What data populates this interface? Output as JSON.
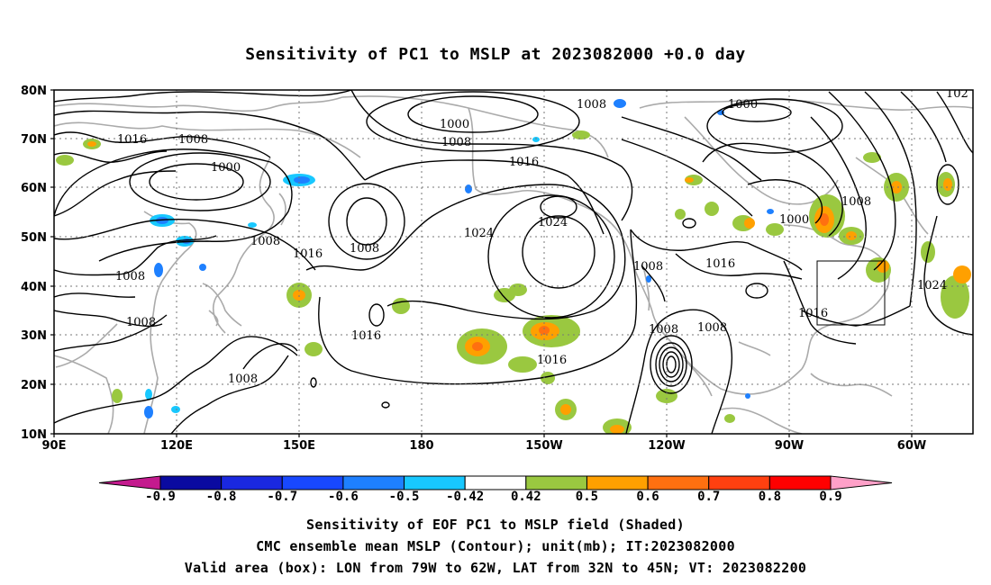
{
  "title": "Sensitivity of PC1 to MSLP at 2023082000 +0.0 day",
  "lat_labels": [
    "80N",
    "70N",
    "60N",
    "50N",
    "40N",
    "30N",
    "20N",
    "10N"
  ],
  "lon_labels": [
    "90E",
    "120E",
    "150E",
    "180",
    "150W",
    "120W",
    "90W",
    "60W"
  ],
  "contour_labels": {
    "l1008_top": "1008",
    "l1000_n": "1000",
    "l1008_n": "1008",
    "l1016_nw": "1016",
    "l1008_nw": "1008",
    "l1000_w": "1000",
    "l1016_mid": "1016",
    "l1000_ne": "1000",
    "l102_ne": "102",
    "l1024_c": "1024",
    "l1024_l": "1024",
    "l1008_e": "1008",
    "l1016_e": "1016",
    "l1008_ne2": "1008",
    "l1000_ne2": "1000",
    "l1008_w2": "1008",
    "l1016_w2": "1016",
    "l1008_c2": "1008",
    "l1008_sw": "1008",
    "l1008_sw2": "1008",
    "l1016_s": "1016",
    "l1016_s2": "1016",
    "l1008_se": "1008",
    "l1008_se2": "1008",
    "l1016_box": "1016",
    "l1024_r": "1024",
    "l1008_w3": "1008"
  },
  "colorbar": {
    "colors": [
      "#c41a8e",
      "#0a0aa0",
      "#1a28e0",
      "#1848ff",
      "#1e80ff",
      "#18c8ff",
      "#ffffff",
      "#9ac840",
      "#ffa000",
      "#ff7010",
      "#ff4010",
      "#ff0000",
      "#ffa0c8"
    ],
    "labels": [
      "-0.9",
      "-0.8",
      "-0.7",
      "-0.6",
      "-0.5",
      "-0.42",
      "0.42",
      "0.5",
      "0.6",
      "0.7",
      "0.8",
      "0.9"
    ]
  },
  "box": {
    "lon_west": "79W",
    "lon_east": "62W",
    "lat_south": "32N",
    "lat_north": "45N"
  },
  "captions": {
    "line1": "Sensitivity of EOF PC1 to MSLP field (Shaded)",
    "line2": "CMC ensemble mean MSLP (Contour); unit(mb); IT:2023082000",
    "line3": "Valid area (box): LON from 79W to 62W, LAT from 32N to 45N; VT: 2023082200"
  }
}
